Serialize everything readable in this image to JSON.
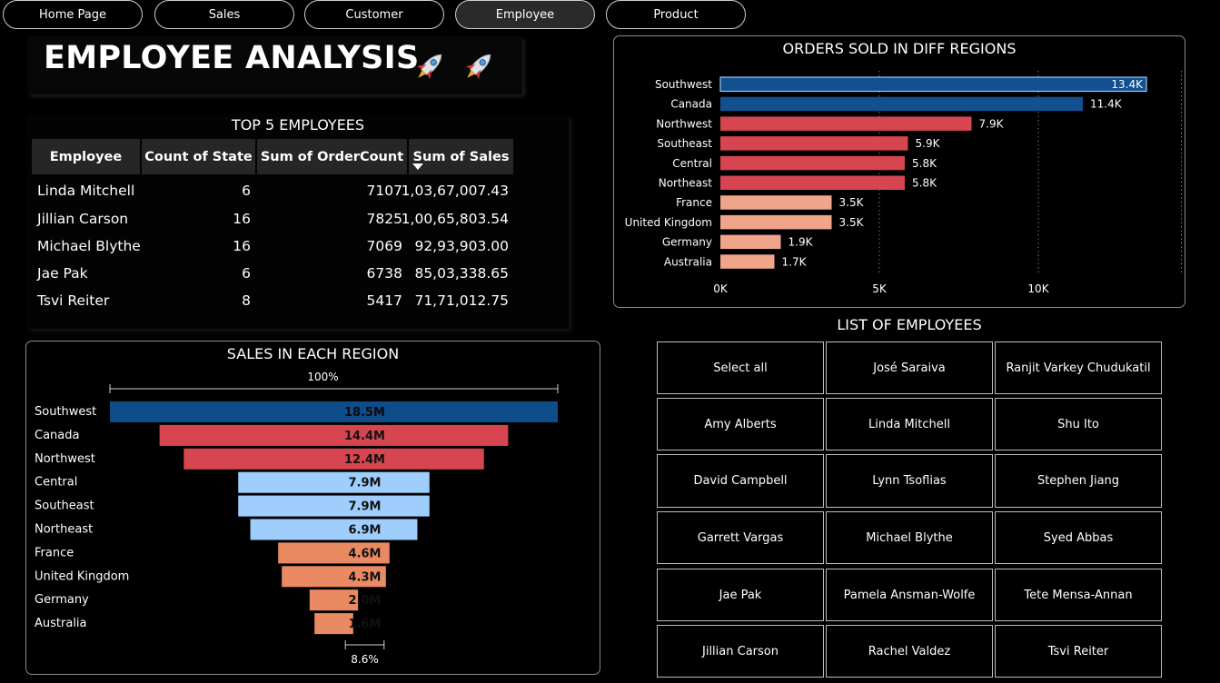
{
  "nav": {
    "tabs": [
      {
        "label": "Home Page",
        "active": false
      },
      {
        "label": "Sales",
        "active": false
      },
      {
        "label": "Customer",
        "active": false
      },
      {
        "label": "Employee",
        "active": true
      },
      {
        "label": "Product",
        "active": false
      }
    ]
  },
  "page_title": "EMPLOYEE ANALYSIS",
  "title_icons": [
    "rocket-icon",
    "rocket-icon"
  ],
  "top_employees": {
    "title": "TOP 5 EMPLOYEES",
    "columns": [
      "Employee",
      "Count of State",
      "Sum of OrderCount",
      "Sum of Sales"
    ],
    "sort_column": "Sum of Sales",
    "sort_direction": "descending",
    "rows": [
      [
        "Linda Mitchell",
        "6",
        "7107",
        "1,03,67,007.43"
      ],
      [
        "Jillian Carson",
        "16",
        "7825",
        "1,00,65,803.54"
      ],
      [
        "Michael Blythe",
        "16",
        "7069",
        "92,93,903.00"
      ],
      [
        "Jae Pak",
        "6",
        "6738",
        "85,03,338.65"
      ],
      [
        "Tsvi Reiter",
        "8",
        "5417",
        "71,71,012.75"
      ]
    ]
  },
  "chart_data": [
    {
      "type": "bar",
      "orientation": "horizontal",
      "title": "ORDERS SOLD IN DIFF REGIONS",
      "categories": [
        "Southwest",
        "Canada",
        "Northwest",
        "Southeast",
        "Central",
        "Northeast",
        "France",
        "United Kingdom",
        "Germany",
        "Australia"
      ],
      "values": [
        13400,
        11400,
        7900,
        5900,
        5800,
        5800,
        3500,
        3500,
        1900,
        1700
      ],
      "data_labels": [
        "13.4K",
        "11.4K",
        "7.9K",
        "5.9K",
        "5.8K",
        "5.8K",
        "3.5K",
        "3.5K",
        "1.9K",
        "1.7K"
      ],
      "colors": [
        "#12508f",
        "#12508f",
        "#d64550",
        "#d64550",
        "#d64550",
        "#d64550",
        "#f0a58a",
        "#f0a58a",
        "#f0a58a",
        "#f0a58a"
      ],
      "x_ticks": [
        {
          "value": 0,
          "label": "0K"
        },
        {
          "value": 5000,
          "label": "5K"
        },
        {
          "value": 10000,
          "label": "10K"
        }
      ],
      "xlim": [
        0,
        14500
      ],
      "grid": "vertical dotted"
    },
    {
      "type": "funnel",
      "title": "SALES IN EACH REGION",
      "categories": [
        "Southwest",
        "Canada",
        "Northwest",
        "Central",
        "Southeast",
        "Northeast",
        "France",
        "United Kingdom",
        "Germany",
        "Australia"
      ],
      "values": [
        18.5,
        14.4,
        12.4,
        7.9,
        7.9,
        6.9,
        4.6,
        4.3,
        2.0,
        1.6
      ],
      "unit": "M",
      "data_labels": [
        "18.5M",
        "14.4M",
        "12.4M",
        "7.9M",
        "7.9M",
        "6.9M",
        "4.6M",
        "4.3M",
        "2.0M",
        "1.6M"
      ],
      "colors": [
        "#0f4c8a",
        "#d64550",
        "#d64550",
        "#9fcdfc",
        "#9fcdfc",
        "#9fcdfc",
        "#ea8a62",
        "#ea8a62",
        "#ea8a62",
        "#ea8a62"
      ],
      "top_percent_label": "100%",
      "bottom_percent_label": "8.6%"
    }
  ],
  "employee_list": {
    "title": "LIST OF EMPLOYEES",
    "items": [
      "Select all",
      "José Saraiva",
      "Ranjit Varkey Chudukatil",
      "Amy Alberts",
      "Linda Mitchell",
      "Shu Ito",
      "David Campbell",
      "Lynn Tsoflias",
      "Stephen Jiang",
      "Garrett Vargas",
      "Michael Blythe",
      "Syed Abbas",
      "Jae Pak",
      "Pamela Ansman-Wolfe",
      "Tete Mensa-Annan",
      "Jillian Carson",
      "Rachel Valdez",
      "Tsvi Reiter"
    ]
  }
}
